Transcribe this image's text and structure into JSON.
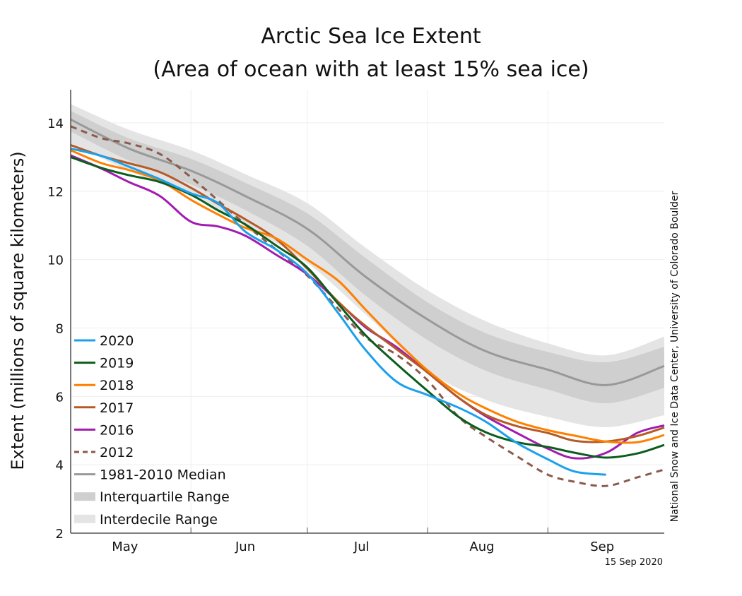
{
  "chart_data": {
    "type": "line",
    "title": [
      "Arctic Sea Ice Extent",
      "(Area of ocean with at least 15% sea ice)"
    ],
    "ylabel": "Extent (millions of square kilometers)",
    "xlabel": "",
    "ylim": [
      2,
      15
    ],
    "yticks": [
      2,
      4,
      6,
      8,
      10,
      12,
      14
    ],
    "x_unit": "days since May 1",
    "xlim": [
      0,
      153
    ],
    "month_boundaries": [
      31,
      61,
      92,
      123
    ],
    "month_labels": [
      {
        "label": "May",
        "day": 14
      },
      {
        "label": "Jun",
        "day": 45
      },
      {
        "label": "Jul",
        "day": 75
      },
      {
        "label": "Aug",
        "day": 106
      },
      {
        "label": "Sep",
        "day": 137
      }
    ],
    "grid": true,
    "legend_position": "bottom-left",
    "credit": "National Snow and Ice Data Center, University of Colorado Boulder",
    "date_stamp": "15 Sep 2020",
    "band_days": [
      0,
      15,
      31,
      45,
      61,
      76,
      92,
      107,
      123,
      138,
      153
    ],
    "median": [
      14.1,
      13.25,
      12.6,
      11.86,
      10.9,
      9.5,
      8.25,
      7.32,
      6.78,
      6.33,
      6.89
    ],
    "interquartile_upper": [
      14.35,
      13.55,
      12.95,
      12.25,
      11.35,
      10.05,
      8.75,
      7.85,
      7.3,
      7.0,
      7.45
    ],
    "interquartile_lower": [
      13.75,
      12.9,
      12.2,
      11.45,
      10.4,
      8.95,
      7.65,
      6.75,
      6.2,
      5.8,
      6.25
    ],
    "interdecile_upper": [
      14.55,
      13.8,
      13.2,
      12.5,
      11.65,
      10.35,
      9.1,
      8.2,
      7.55,
      7.2,
      7.75
    ],
    "interdecile_lower": [
      13.4,
      12.6,
      11.85,
      11.0,
      9.9,
      8.4,
      6.75,
      5.9,
      5.4,
      5.1,
      5.45
    ],
    "series_days": [
      0,
      8,
      15,
      23,
      31,
      38,
      45,
      53,
      61,
      69,
      76,
      84,
      92,
      100,
      107,
      115,
      123,
      130,
      138,
      146,
      153
    ],
    "series": [
      {
        "name": "2020",
        "color": "#1ba1ec",
        "dashed": false,
        "values": [
          13.25,
          13.03,
          12.72,
          12.35,
          11.94,
          11.65,
          10.82,
          10.29,
          9.59,
          8.43,
          7.36,
          6.43,
          6.04,
          5.67,
          5.26,
          4.64,
          4.16,
          3.8,
          3.71,
          null,
          null
        ]
      },
      {
        "name": "2019",
        "color": "#0b5d1e",
        "dashed": false,
        "values": [
          13.0,
          12.68,
          12.47,
          12.27,
          11.9,
          11.44,
          11.03,
          10.41,
          9.77,
          8.7,
          7.79,
          6.95,
          6.16,
          5.4,
          4.95,
          4.66,
          4.52,
          4.35,
          4.21,
          4.33,
          4.58
        ]
      },
      {
        "name": "2018",
        "color": "#ff8000",
        "dashed": false,
        "values": [
          13.2,
          12.82,
          12.62,
          12.31,
          11.75,
          11.32,
          10.93,
          10.62,
          10.0,
          9.38,
          8.54,
          7.61,
          6.76,
          6.08,
          5.65,
          5.26,
          5.01,
          4.85,
          4.68,
          4.66,
          4.87
        ]
      },
      {
        "name": "2017",
        "color": "#b55a26",
        "dashed": false,
        "values": [
          13.35,
          13.03,
          12.82,
          12.56,
          12.1,
          11.63,
          11.18,
          10.6,
          9.73,
          8.76,
          8.06,
          7.38,
          6.7,
          5.96,
          5.46,
          5.13,
          4.93,
          4.7,
          4.68,
          4.84,
          5.09
        ]
      },
      {
        "name": "2016",
        "color": "#a21caf",
        "dashed": false,
        "values": [
          13.05,
          12.66,
          12.27,
          11.86,
          11.11,
          10.97,
          10.7,
          10.14,
          9.57,
          8.76,
          8.02,
          7.44,
          6.7,
          5.96,
          5.42,
          4.93,
          4.47,
          4.19,
          4.35,
          4.93,
          5.15
        ]
      },
      {
        "name": "2012",
        "color": "#8b5a4a",
        "dashed": true,
        "values": [
          13.9,
          13.55,
          13.4,
          13.09,
          12.41,
          11.73,
          11.03,
          10.29,
          9.53,
          8.56,
          7.73,
          7.22,
          6.47,
          5.4,
          4.82,
          4.25,
          3.71,
          3.5,
          3.38,
          3.63,
          3.86
        ]
      }
    ],
    "legend": [
      {
        "label": "2020",
        "kind": "line",
        "color": "#1ba1ec"
      },
      {
        "label": "2019",
        "kind": "line",
        "color": "#0b5d1e"
      },
      {
        "label": "2018",
        "kind": "line",
        "color": "#ff8000"
      },
      {
        "label": "2017",
        "kind": "line",
        "color": "#b55a26"
      },
      {
        "label": "2016",
        "kind": "line",
        "color": "#a21caf"
      },
      {
        "label": "2012",
        "kind": "dash",
        "color": "#8b5a4a"
      },
      {
        "label": "1981-2010 Median",
        "kind": "line",
        "color": "#999999"
      },
      {
        "label": "Interquartile Range",
        "kind": "band",
        "color": "#cfcfcf"
      },
      {
        "label": "Interdecile Range",
        "kind": "band",
        "color": "#e4e4e4"
      }
    ],
    "colors": {
      "median": "#999999",
      "interquartile": "#cfcfcf",
      "interdecile": "#e4e4e4"
    }
  }
}
